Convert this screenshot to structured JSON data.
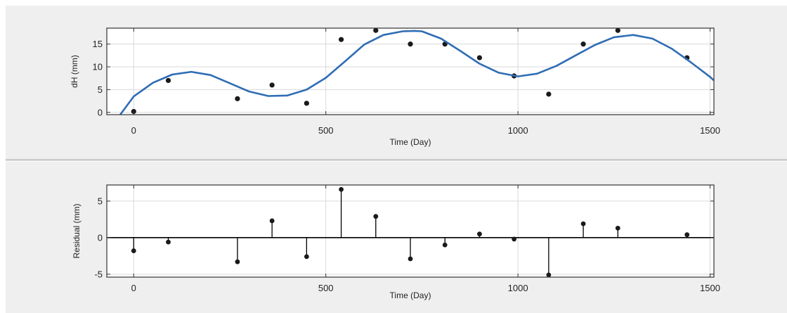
{
  "colors": {
    "panel_background": "#efefef",
    "plot_background": "#ffffff",
    "grid": "#d9d9d9",
    "fit_line": "#2f6db5",
    "points": "#1a1a1a",
    "stems": "#000000"
  },
  "chart_data": [
    {
      "type": "scatter",
      "title": "",
      "xlabel": "Time (Day)",
      "ylabel": "dH (mm)",
      "xlim": [
        -70,
        1510
      ],
      "ylim": [
        -0.5,
        18.5
      ],
      "xticks": [
        0,
        500,
        1000,
        1500
      ],
      "yticks": [
        0,
        5,
        10,
        15
      ],
      "grid": true,
      "legend": "none",
      "series": [
        {
          "kind": "points",
          "x": [
            0,
            90,
            270,
            360,
            450,
            540,
            630,
            720,
            810,
            900,
            990,
            1080,
            1170,
            1260,
            1440
          ],
          "y": [
            0.2,
            7,
            3,
            6,
            2,
            16,
            18,
            15,
            15,
            12,
            8,
            4,
            15,
            18,
            12
          ]
        },
        {
          "kind": "fitted-curve",
          "x": [
            -35,
            0,
            50,
            100,
            150,
            200,
            250,
            300,
            350,
            400,
            450,
            500,
            550,
            600,
            650,
            700,
            730,
            750,
            800,
            850,
            900,
            950,
            1000,
            1050,
            1100,
            1150,
            1200,
            1250,
            1300,
            1350,
            1400,
            1450,
            1500,
            1510
          ],
          "y": [
            -0.5,
            3.5,
            6.5,
            8.3,
            8.9,
            8.2,
            6.4,
            4.6,
            3.6,
            3.7,
            5.0,
            7.6,
            11.2,
            14.9,
            17.0,
            17.8,
            17.9,
            17.8,
            16.2,
            13.5,
            10.7,
            8.7,
            7.9,
            8.5,
            10.2,
            12.5,
            14.8,
            16.5,
            17.0,
            16.2,
            14.0,
            11.0,
            7.8,
            7.0
          ]
        }
      ]
    },
    {
      "type": "scatter",
      "title": "",
      "xlabel": "Time (Day)",
      "ylabel": "Residual (mm)",
      "xlim": [
        -70,
        1510
      ],
      "ylim": [
        -5.4,
        7.2
      ],
      "xticks": [
        0,
        500,
        1000,
        1500
      ],
      "yticks": [
        -5,
        0,
        5
      ],
      "grid": true,
      "legend": "none",
      "series": [
        {
          "kind": "stems",
          "x": [
            0,
            90,
            270,
            360,
            450,
            540,
            630,
            720,
            810,
            900,
            990,
            1080,
            1170,
            1260,
            1440
          ],
          "y": [
            -1.8,
            -0.6,
            -3.3,
            2.3,
            -2.6,
            6.6,
            2.9,
            -2.9,
            -1.0,
            0.5,
            -0.2,
            -5.1,
            1.9,
            1.3,
            0.4
          ]
        }
      ]
    }
  ]
}
